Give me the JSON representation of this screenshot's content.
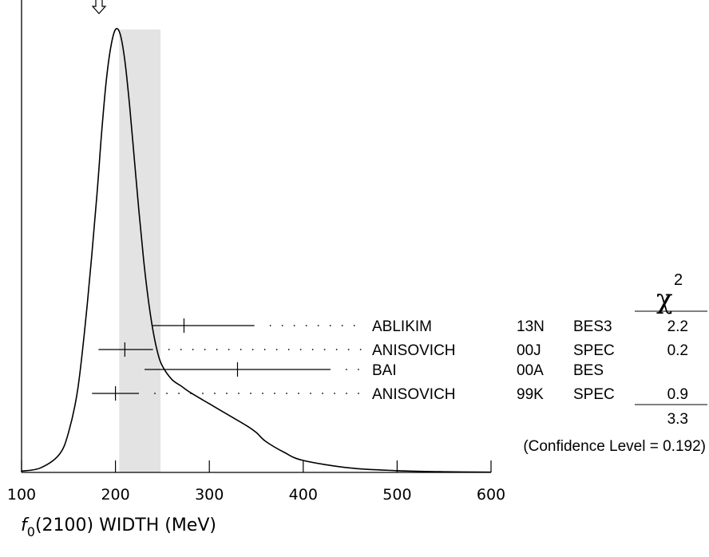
{
  "chart_data": {
    "type": "ideogram",
    "xlabel_main": "f",
    "xlabel_sub": "0",
    "xlabel_rest": "(2100) WIDTH (MeV)",
    "xlim": [
      100,
      600
    ],
    "xticks": [
      100,
      200,
      300,
      400,
      500,
      600
    ],
    "average": {
      "value": 225,
      "band": [
        204,
        248
      ]
    },
    "curve_x": [
      100,
      120,
      140,
      150,
      160,
      170,
      180,
      185,
      190,
      195,
      200,
      205,
      210,
      215,
      220,
      225,
      230,
      235,
      240,
      245,
      250,
      260,
      270,
      280,
      300,
      320,
      340,
      350,
      360,
      380,
      400,
      450,
      500,
      550,
      600
    ],
    "curve_y": [
      0.003,
      0.01,
      0.04,
      0.09,
      0.19,
      0.38,
      0.62,
      0.76,
      0.88,
      0.96,
      1.0,
      0.99,
      0.93,
      0.83,
      0.71,
      0.59,
      0.48,
      0.39,
      0.32,
      0.27,
      0.24,
      0.21,
      0.195,
      0.18,
      0.155,
      0.13,
      0.105,
      0.09,
      0.07,
      0.045,
      0.027,
      0.01,
      0.004,
      0.0015,
      0.0005
    ],
    "chi2_header": "χ",
    "chi2_exp": "2",
    "measurements": [
      {
        "author": "ABLIKIM",
        "year": "13N",
        "tecn": "BES3",
        "chi2": "2.2",
        "value": 273,
        "low": 239,
        "high": 348
      },
      {
        "author": "ANISOVICH",
        "year": "00J",
        "tecn": "SPEC",
        "chi2": "0.2",
        "value": 210,
        "low": 182,
        "high": 240
      },
      {
        "author": "BAI",
        "year": "00A",
        "tecn": "BES",
        "chi2": "",
        "value": 330,
        "low": 231,
        "high": 429
      },
      {
        "author": "ANISOVICH",
        "year": "99K",
        "tecn": "SPEC",
        "chi2": "0.9",
        "value": 200,
        "low": 175,
        "high": 225
      }
    ],
    "chi2_total": "3.3",
    "confidence_text": "(Confidence Level = 0.192)"
  }
}
